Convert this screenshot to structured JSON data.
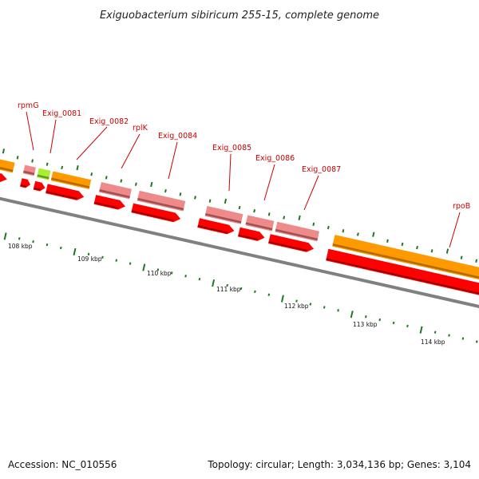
{
  "title": "Exiguobacterium sibiricum 255-15, complete genome",
  "accession_text": "Accession: NC_010556",
  "topology_text": "Topology: circular; Length: 3,034,136 bp; Genes: 3,104",
  "colors": {
    "orange": "#ff9900",
    "orange_dark": "#b36b00",
    "pink": "#ee8a8a",
    "pink_dark": "#a05050",
    "red": "#ff0000",
    "red_dark": "#990000",
    "green": "#aaee33",
    "green_dark": "#669922",
    "backbone": "#808080",
    "tick": "#227722",
    "label": "#cc0000"
  },
  "gene_labels": [
    "rpmG",
    "Exig_0081",
    "Exig_0082",
    "rplK",
    "Exig_0084",
    "Exig_0085",
    "Exig_0086",
    "Exig_0087",
    "rpoB"
  ],
  "position_labels": [
    "108 kbp",
    "109 kbp",
    "110 kbp",
    "111 kbp",
    "112 kbp",
    "113 kbp",
    "114 kbp"
  ]
}
